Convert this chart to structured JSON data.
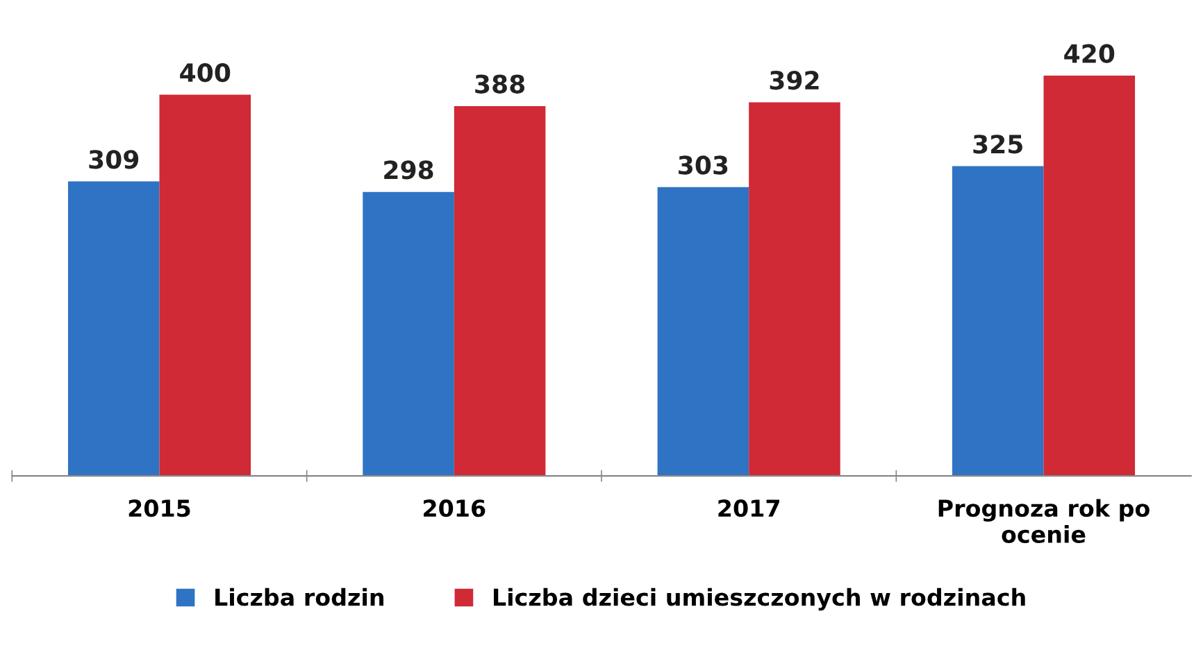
{
  "chart_data": {
    "type": "bar",
    "categories": [
      "2015",
      "2016",
      "2017",
      "Prognoza rok po ocenie"
    ],
    "series": [
      {
        "name": "Liczba rodzin",
        "color": "#2f73c4",
        "values": [
          309,
          298,
          303,
          325
        ]
      },
      {
        "name": "Liczba dzieci umieszczonych w rodzinach",
        "color": "#cf2a36",
        "values": [
          400,
          388,
          392,
          420
        ]
      }
    ],
    "data_labels": true,
    "legend": "bottom",
    "grid": false,
    "tick_labels": "x"
  }
}
